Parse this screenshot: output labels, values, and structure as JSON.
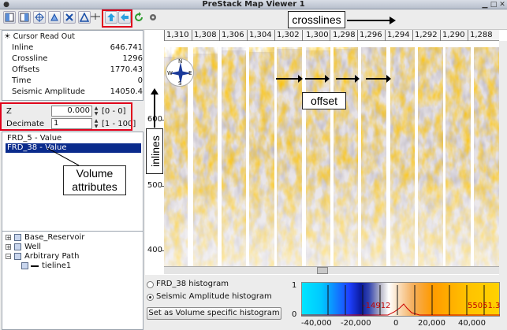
{
  "window": {
    "title": "PreStack Map Viewer 1"
  },
  "toolbar": {
    "icons": [
      "view-layout-icon",
      "view-layout-2-icon",
      "crosshair-icon",
      "pick-icon",
      "tool-x-icon",
      "tool-a-icon",
      "pointer-icon",
      "arrow-up-right-icon",
      "arrow-left-icon",
      "refresh-icon",
      "settings-gear-icon"
    ]
  },
  "cursor_readout": {
    "header": "Cursor Read Out",
    "rows": [
      {
        "label": "Inline",
        "value": "646.741"
      },
      {
        "label": "Crossline",
        "value": "1296"
      },
      {
        "label": "Offsets",
        "value": "1770.43"
      },
      {
        "label": "Time",
        "value": "0"
      },
      {
        "label": "Seismic Amplitude",
        "value": "14050.4"
      }
    ]
  },
  "controls": {
    "z_label": "Z",
    "z_value": "0.000",
    "z_range": "[0 - 0]",
    "decimate_label": "Decimate",
    "decimate_value": "1",
    "decimate_range": "[1 - 100]"
  },
  "attributes_list": {
    "items": [
      {
        "label": "FRD_5 - Value",
        "selected": false
      },
      {
        "label": "FRD_38 - Value",
        "selected": true
      }
    ]
  },
  "tree": {
    "items": [
      {
        "label": "Base_Reservoir",
        "level": 0
      },
      {
        "label": "Well",
        "level": 0
      },
      {
        "label": "Arbitrary Path",
        "level": 0
      },
      {
        "label": "tieline1",
        "level": 1
      }
    ]
  },
  "annotations": {
    "crosslines": "crosslines",
    "inlines": "inlines",
    "offset": "offset",
    "volume_attributes_line1": "Volume",
    "volume_attributes_line2": "attributes"
  },
  "map": {
    "crossline_ticks": [
      "1,310",
      "1,308",
      "1,306",
      "1,304",
      "1,302",
      "1,300",
      "1,298",
      "1,296",
      "1,294",
      "1,292",
      "1,290",
      "1,288"
    ],
    "inline_ticks": [
      "600",
      "500",
      "400"
    ],
    "compass": {
      "n": "N",
      "s": "S",
      "e": "E",
      "w": "W"
    }
  },
  "histogram": {
    "option1": "FRD_38 histogram",
    "option2": "Seismic Amplitude histogram",
    "selected": "option2",
    "button_label": "Set as Volume specific histogram",
    "scale_max": "1",
    "scale_min": "0",
    "min_value": "-14912",
    "max_value": "55051.3",
    "axis_ticks": [
      "-40,000",
      "-20,000",
      "0",
      "20,000",
      "40,000"
    ]
  },
  "colors": {
    "selection": "#0a2b8c",
    "highlight_box": "#e0001b",
    "seismic_orange": "#ff8c00"
  }
}
